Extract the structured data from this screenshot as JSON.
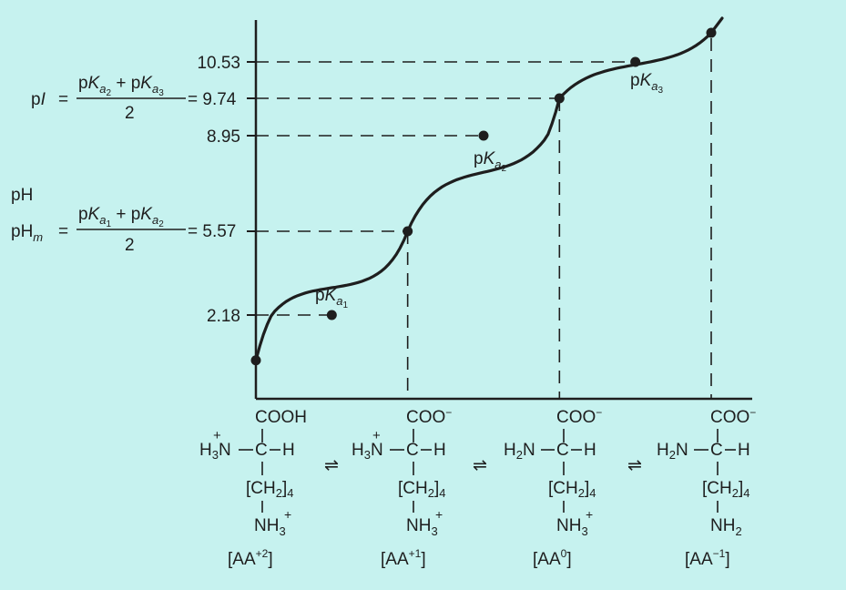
{
  "colors": {
    "background": "#c6f2ef",
    "ink": "#1e1e1e"
  },
  "chart_data": {
    "type": "line",
    "title": "",
    "xlabel": "",
    "ylabel": "pH",
    "ylim": [
      0,
      11.2
    ],
    "grid": false,
    "y_ticks": [
      2.18,
      5.57,
      8.95,
      9.74,
      10.53
    ],
    "y_tick_labels": [
      "2.18",
      "5.57",
      "8.95",
      "9.74",
      "10.53"
    ],
    "x_equivalents": [
      0,
      0.5,
      1,
      1.5,
      2,
      2.5,
      3,
      3.5,
      4
    ],
    "titration_points": [
      {
        "x": 0,
        "y": 1.0
      },
      {
        "x": 0.5,
        "y": 2.18
      },
      {
        "x": 1,
        "y": 5.57
      },
      {
        "x": 1.5,
        "y": 8.95
      },
      {
        "x": 2,
        "y": 9.74
      },
      {
        "x": 2.5,
        "y": 10.53
      },
      {
        "x": 3,
        "y": 11.2
      }
    ],
    "annotations": {
      "pka1": {
        "letter": "K",
        "sub": "a",
        "sub2": "1",
        "prefix": "p"
      },
      "pka2": {
        "letter": "K",
        "sub": "a",
        "sub2": "2",
        "prefix": "p"
      },
      "pka3": {
        "letter": "K",
        "sub": "a",
        "sub2": "3",
        "prefix": "p"
      },
      "ph_label": "pH",
      "pI_formula": {
        "lhs": "p",
        "lhs_italic": "I",
        "eq": "=",
        "numerator": "pK + pK",
        "denominator": "2",
        "rhs": "= 9.74"
      },
      "pHm_formula": {
        "lhs": "pH",
        "lhs_sub": "m",
        "eq": "=",
        "denominator": "2",
        "rhs": "= 5.57"
      }
    }
  },
  "species": [
    {
      "top": "COOH",
      "left": "H3N",
      "plus_on_left": true,
      "center": "C",
      "right": "H",
      "chain": "[CH2]4",
      "bottom": "NH3",
      "bottom_plus": true,
      "label": "[AA+2]"
    },
    {
      "top": "COO",
      "top_minus": true,
      "left": "H3N",
      "plus_on_left": true,
      "center": "C",
      "right": "H",
      "chain": "[CH2]4",
      "bottom": "NH3",
      "bottom_plus": true,
      "label": "[AA+1]"
    },
    {
      "top": "COO",
      "top_minus": true,
      "left": "H2N",
      "plus_on_left": false,
      "center": "C",
      "right": "H",
      "chain": "[CH2]4",
      "bottom": "NH3",
      "bottom_plus": true,
      "label": "[AA0]"
    },
    {
      "top": "COO",
      "top_minus": true,
      "left": "H2N",
      "plus_on_left": false,
      "center": "C",
      "right": "H",
      "chain": "[CH2]4",
      "bottom": "NH2",
      "bottom_plus": false,
      "label": "[AA-1]"
    }
  ],
  "equilibrium_symbol": "⇌",
  "species_text": {
    "s1": {
      "top": "COOH",
      "h3": "H",
      "h3sub": "3",
      "n": "N",
      "plus": "+",
      "c": "C",
      "h": "H",
      "ch2": "[CH",
      "ch2sub": "2",
      "ch2end": "]",
      "ch2sub4": "4",
      "nh": "NH",
      "nhsub": "3",
      "nhplus": "+",
      "lab": "[AA",
      "labsup": "+2",
      "labend": "]"
    },
    "s2": {
      "top": "COO",
      "topsup": "−",
      "h3": "H",
      "h3sub": "3",
      "n": "N",
      "plus": "+",
      "c": "C",
      "h": "H",
      "ch2": "[CH",
      "ch2sub": "2",
      "ch2end": "]",
      "ch2sub4": "4",
      "nh": "NH",
      "nhsub": "3",
      "nhplus": "+",
      "lab": "[AA",
      "labsup": "+1",
      "labend": "]"
    },
    "s3": {
      "top": "COO",
      "topsup": "−",
      "h2": "H",
      "h2sub": "2",
      "n": "N",
      "c": "C",
      "h": "H",
      "ch2": "[CH",
      "ch2sub": "2",
      "ch2end": "]",
      "ch2sub4": "4",
      "nh": "NH",
      "nhsub": "3",
      "nhplus": "+",
      "lab": "[AA",
      "labsup": "0",
      "labend": "]"
    },
    "s4": {
      "top": "COO",
      "topsup": "−",
      "h2": "H",
      "h2sub": "2",
      "n": "N",
      "c": "C",
      "h": "H",
      "ch2": "[CH",
      "ch2sub": "2",
      "ch2end": "]",
      "ch2sub4": "4",
      "nh": "NH",
      "nhsub": "2",
      "lab": "[AA",
      "labsup": "−1",
      "labend": "]"
    }
  }
}
